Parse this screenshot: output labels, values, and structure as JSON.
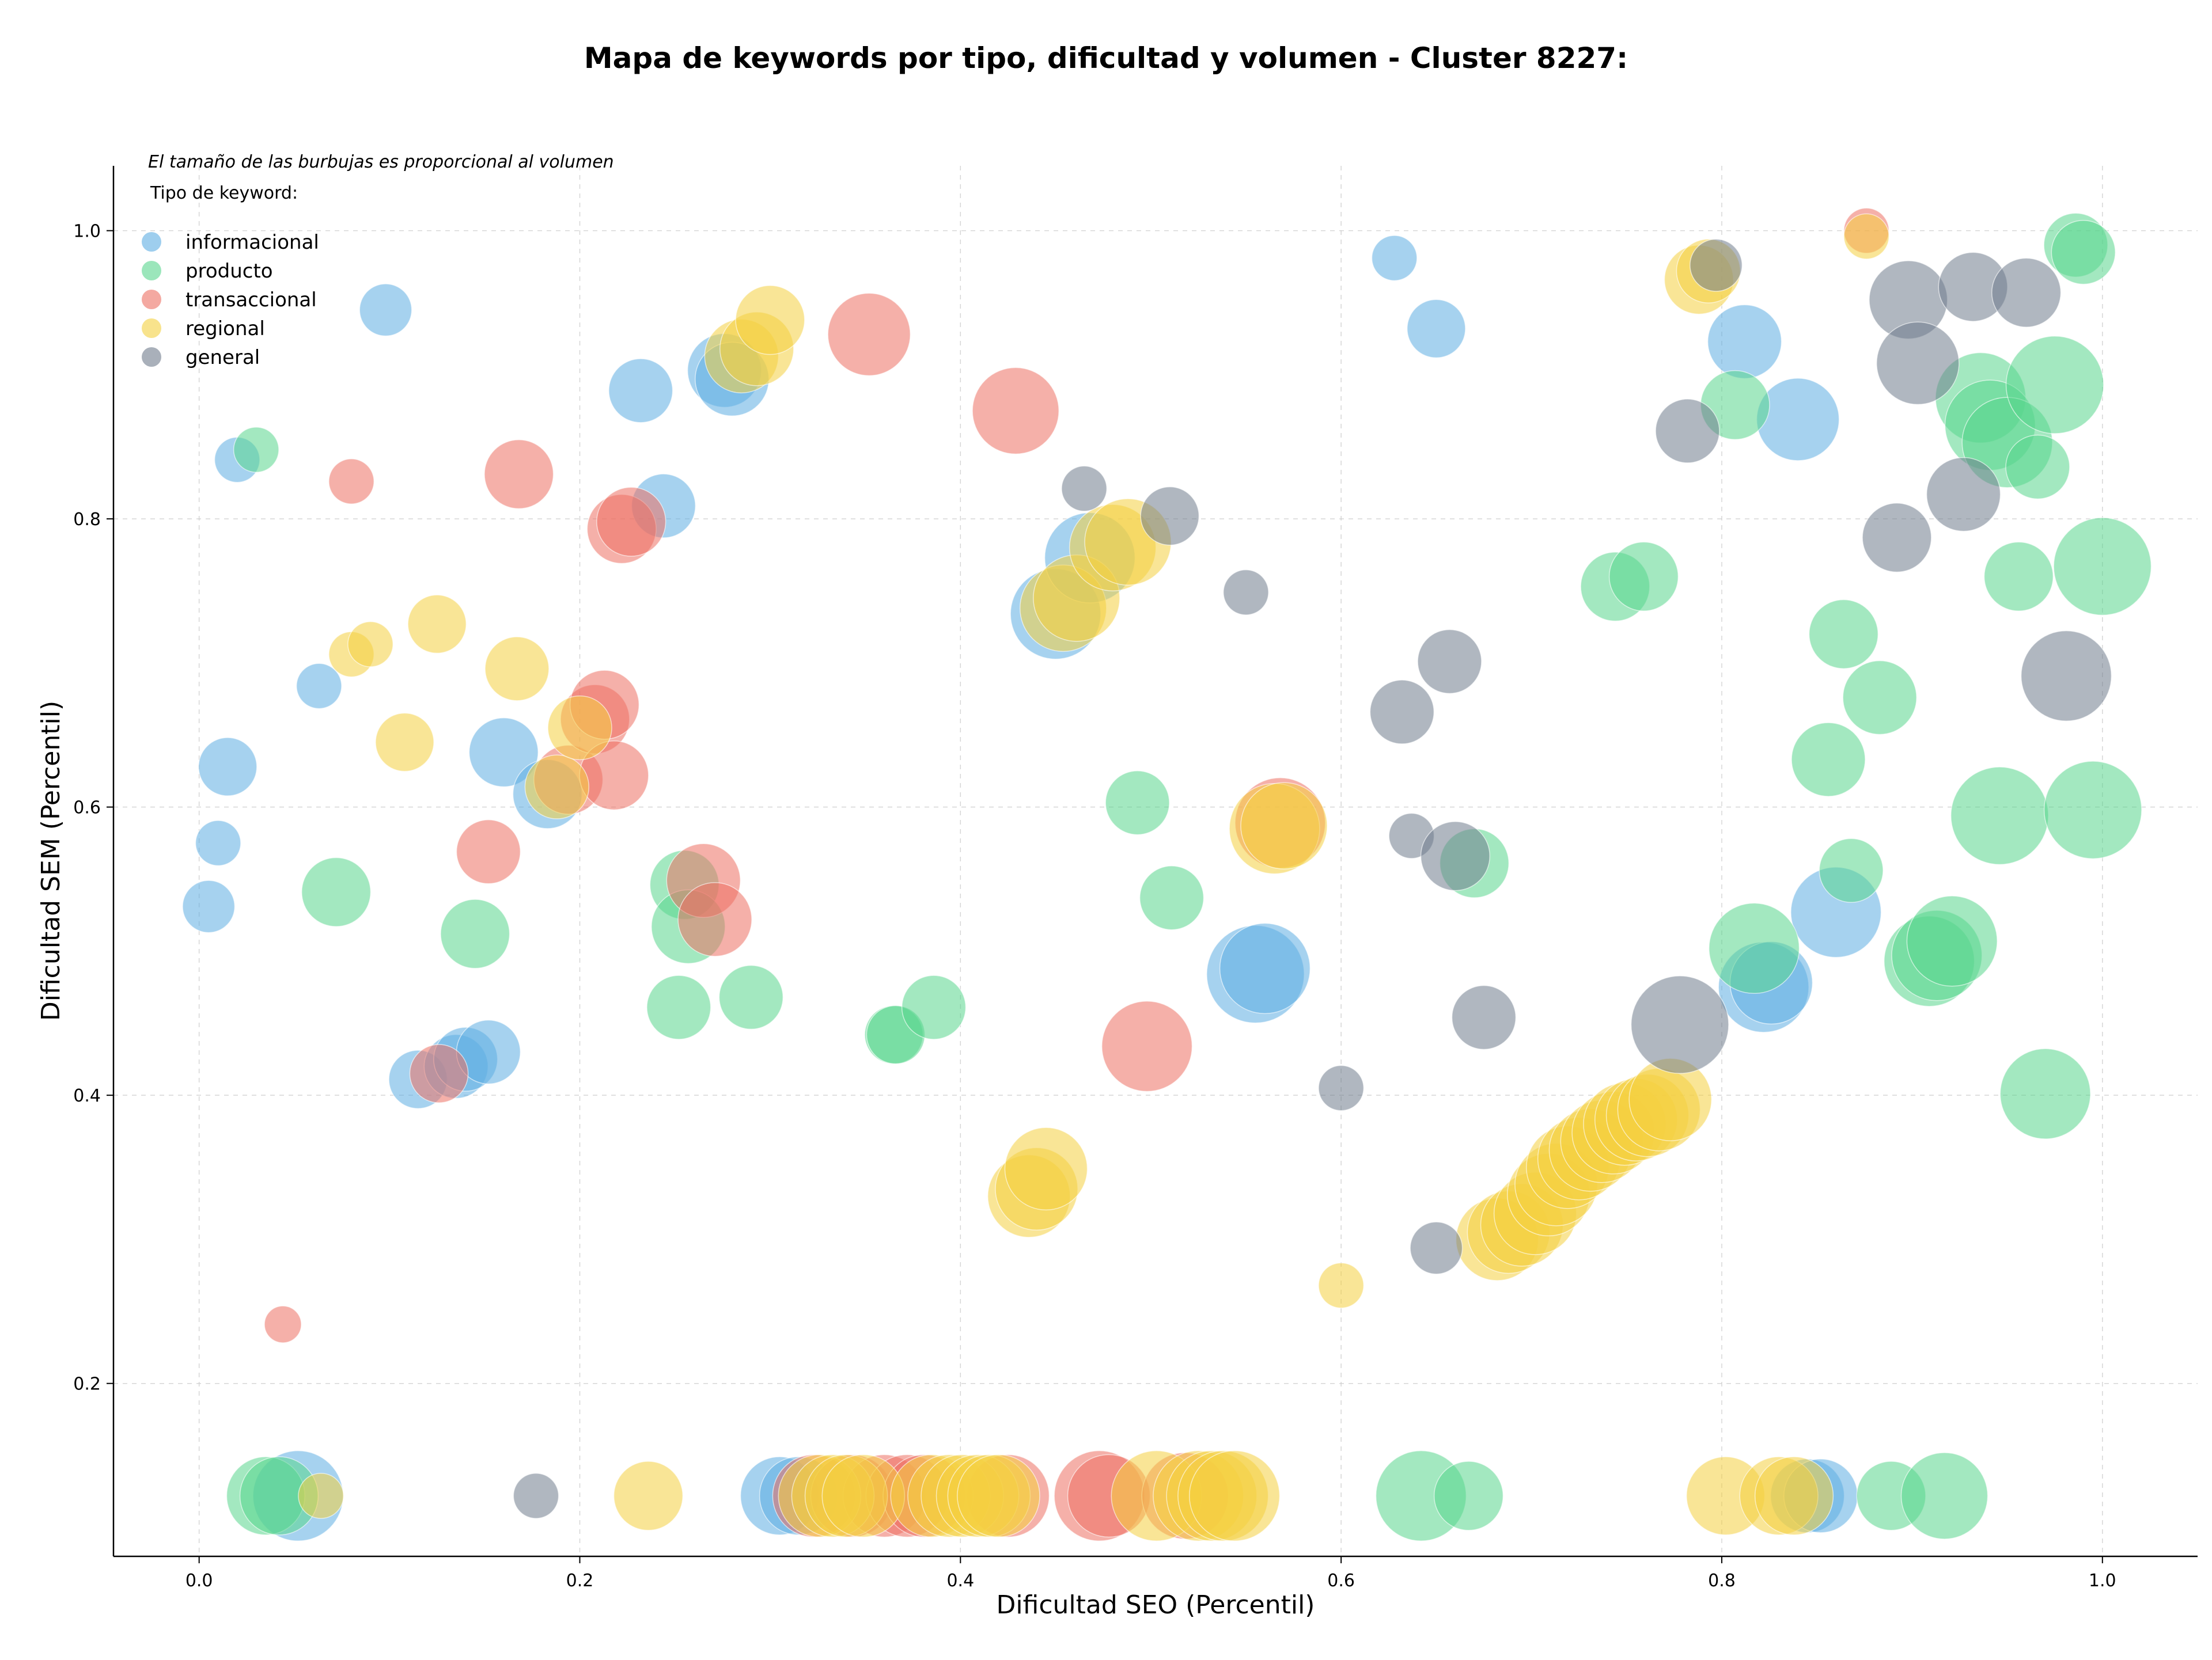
{
  "chart_data": {
    "type": "scatter",
    "title": "Mapa de keywords por tipo, dificultad y volumen - Cluster 8227:",
    "xlabel": "Dificultad SEO (Percentil)",
    "ylabel": "Dificultad SEM (Percentil)",
    "xlim": [
      -0.045,
      1.05
    ],
    "ylim": [
      0.08,
      1.045
    ],
    "xticks": [
      "0.0",
      "0.2",
      "0.4",
      "0.6",
      "0.8",
      "1.0"
    ],
    "yticks": [
      "0.2",
      "0.4",
      "0.6",
      "0.8",
      "1.0"
    ],
    "grid": true,
    "legend": {
      "placement": "top-left",
      "note": "El tamaño de las burbujas es proporcional al volumen",
      "title": "Tipo de keyword:"
    },
    "size_note": "s = relative bubble size (proportional to volume)",
    "series": [
      {
        "name": "informacional",
        "color": "#5DADE2",
        "points": [
          {
            "x": 0.005,
            "y": 0.531,
            "s": 2
          },
          {
            "x": 0.01,
            "y": 0.575,
            "s": 1.5
          },
          {
            "x": 0.015,
            "y": 0.628,
            "s": 2.5
          },
          {
            "x": 0.02,
            "y": 0.841,
            "s": 1.5
          },
          {
            "x": 0.052,
            "y": 0.122,
            "s": 6
          },
          {
            "x": 0.063,
            "y": 0.684,
            "s": 1.5
          },
          {
            "x": 0.098,
            "y": 0.945,
            "s": 2
          },
          {
            "x": 0.115,
            "y": 0.411,
            "s": 2.5
          },
          {
            "x": 0.135,
            "y": 0.42,
            "s": 3
          },
          {
            "x": 0.14,
            "y": 0.425,
            "s": 3
          },
          {
            "x": 0.152,
            "y": 0.43,
            "s": 3
          },
          {
            "x": 0.16,
            "y": 0.638,
            "s": 3.5
          },
          {
            "x": 0.183,
            "y": 0.609,
            "s": 3.5
          },
          {
            "x": 0.232,
            "y": 0.889,
            "s": 3
          },
          {
            "x": 0.244,
            "y": 0.809,
            "s": 3
          },
          {
            "x": 0.276,
            "y": 0.903,
            "s": 4
          },
          {
            "x": 0.28,
            "y": 0.897,
            "s": 4
          },
          {
            "x": 0.305,
            "y": 0.122,
            "s": 4.5
          },
          {
            "x": 0.315,
            "y": 0.122,
            "s": 4.5
          },
          {
            "x": 0.45,
            "y": 0.734,
            "s": 6
          },
          {
            "x": 0.468,
            "y": 0.773,
            "s": 6
          },
          {
            "x": 0.555,
            "y": 0.484,
            "s": 7
          },
          {
            "x": 0.56,
            "y": 0.488,
            "s": 6
          },
          {
            "x": 0.628,
            "y": 0.981,
            "s": 1.5
          },
          {
            "x": 0.65,
            "y": 0.932,
            "s": 2.5
          },
          {
            "x": 0.812,
            "y": 0.923,
            "s": 4
          },
          {
            "x": 0.822,
            "y": 0.475,
            "s": 6
          },
          {
            "x": 0.826,
            "y": 0.478,
            "s": 5
          },
          {
            "x": 0.84,
            "y": 0.869,
            "s": 5
          },
          {
            "x": 0.845,
            "y": 0.122,
            "s": 4
          },
          {
            "x": 0.852,
            "y": 0.122,
            "s": 4
          },
          {
            "x": 0.86,
            "y": 0.527,
            "s": 6
          }
        ]
      },
      {
        "name": "producto",
        "color": "#58D68D",
        "points": [
          {
            "x": 0.03,
            "y": 0.848,
            "s": 1.5
          },
          {
            "x": 0.035,
            "y": 0.122,
            "s": 4.5
          },
          {
            "x": 0.042,
            "y": 0.122,
            "s": 4.5
          },
          {
            "x": 0.072,
            "y": 0.541,
            "s": 3.5
          },
          {
            "x": 0.145,
            "y": 0.512,
            "s": 3.5
          },
          {
            "x": 0.252,
            "y": 0.461,
            "s": 3
          },
          {
            "x": 0.255,
            "y": 0.546,
            "s": 3.5
          },
          {
            "x": 0.257,
            "y": 0.517,
            "s": 4
          },
          {
            "x": 0.29,
            "y": 0.468,
            "s": 3
          },
          {
            "x": 0.365,
            "y": 0.442,
            "s": 2.5
          },
          {
            "x": 0.366,
            "y": 0.442,
            "s": 2.5
          },
          {
            "x": 0.386,
            "y": 0.461,
            "s": 3
          },
          {
            "x": 0.493,
            "y": 0.603,
            "s": 3
          },
          {
            "x": 0.511,
            "y": 0.537,
            "s": 3
          },
          {
            "x": 0.642,
            "y": 0.122,
            "s": 6
          },
          {
            "x": 0.667,
            "y": 0.122,
            "s": 3.5
          },
          {
            "x": 0.67,
            "y": 0.561,
            "s": 3.5
          },
          {
            "x": 0.744,
            "y": 0.753,
            "s": 3.5
          },
          {
            "x": 0.759,
            "y": 0.76,
            "s": 3.5
          },
          {
            "x": 0.807,
            "y": 0.879,
            "s": 3.5
          },
          {
            "x": 0.817,
            "y": 0.502,
            "s": 6
          },
          {
            "x": 0.856,
            "y": 0.633,
            "s": 4
          },
          {
            "x": 0.864,
            "y": 0.72,
            "s": 3.5
          },
          {
            "x": 0.868,
            "y": 0.556,
            "s": 3
          },
          {
            "x": 0.883,
            "y": 0.676,
            "s": 4
          },
          {
            "x": 0.889,
            "y": 0.122,
            "s": 3.5
          },
          {
            "x": 0.909,
            "y": 0.493,
            "s": 6
          },
          {
            "x": 0.913,
            "y": 0.497,
            "s": 6
          },
          {
            "x": 0.917,
            "y": 0.122,
            "s": 5.5
          },
          {
            "x": 0.921,
            "y": 0.507,
            "s": 6
          },
          {
            "x": 0.936,
            "y": 0.884,
            "s": 6
          },
          {
            "x": 0.941,
            "y": 0.865,
            "s": 6
          },
          {
            "x": 0.95,
            "y": 0.853,
            "s": 6
          },
          {
            "x": 0.946,
            "y": 0.594,
            "s": 7
          },
          {
            "x": 0.956,
            "y": 0.76,
            "s": 3.5
          },
          {
            "x": 0.966,
            "y": 0.836,
            "s": 3
          },
          {
            "x": 0.97,
            "y": 0.401,
            "s": 6
          },
          {
            "x": 0.975,
            "y": 0.893,
            "s": 7
          },
          {
            "x": 0.986,
            "y": 0.99,
            "s": 3
          },
          {
            "x": 0.99,
            "y": 0.985,
            "s": 3
          },
          {
            "x": 0.995,
            "y": 0.598,
            "s": 7
          },
          {
            "x": 1.0,
            "y": 0.767,
            "s": 7
          }
        ]
      },
      {
        "name": "transaccional",
        "color": "#EC7063",
        "points": [
          {
            "x": 0.044,
            "y": 0.241,
            "s": 1
          },
          {
            "x": 0.08,
            "y": 0.826,
            "s": 1.5
          },
          {
            "x": 0.126,
            "y": 0.415,
            "s": 2.5
          },
          {
            "x": 0.152,
            "y": 0.569,
            "s": 3
          },
          {
            "x": 0.168,
            "y": 0.831,
            "s": 3.5
          },
          {
            "x": 0.194,
            "y": 0.619,
            "s": 3.5
          },
          {
            "x": 0.208,
            "y": 0.661,
            "s": 3.5
          },
          {
            "x": 0.213,
            "y": 0.671,
            "s": 3.5
          },
          {
            "x": 0.218,
            "y": 0.622,
            "s": 3.5
          },
          {
            "x": 0.222,
            "y": 0.793,
            "s": 3.5
          },
          {
            "x": 0.227,
            "y": 0.798,
            "s": 3.5
          },
          {
            "x": 0.265,
            "y": 0.549,
            "s": 4
          },
          {
            "x": 0.271,
            "y": 0.522,
            "s": 4
          },
          {
            "x": 0.323,
            "y": 0.122,
            "s": 5
          },
          {
            "x": 0.343,
            "y": 0.122,
            "s": 5
          },
          {
            "x": 0.352,
            "y": 0.928,
            "s": 5
          },
          {
            "x": 0.36,
            "y": 0.122,
            "s": 5
          },
          {
            "x": 0.372,
            "y": 0.122,
            "s": 5
          },
          {
            "x": 0.381,
            "y": 0.122,
            "s": 5
          },
          {
            "x": 0.425,
            "y": 0.122,
            "s": 5
          },
          {
            "x": 0.429,
            "y": 0.875,
            "s": 5.5
          },
          {
            "x": 0.473,
            "y": 0.122,
            "s": 6
          },
          {
            "x": 0.478,
            "y": 0.122,
            "s": 5
          },
          {
            "x": 0.498,
            "y": 0.434,
            "s": 6
          },
          {
            "x": 0.518,
            "y": 0.122,
            "s": 5.5
          },
          {
            "x": 0.568,
            "y": 0.589,
            "s": 6
          },
          {
            "x": 0.876,
            "y": 1.0,
            "s": 1.5
          }
        ]
      },
      {
        "name": "regional",
        "color": "#F4D03F",
        "points": [
          {
            "x": 0.064,
            "y": 0.122,
            "s": 1.5
          },
          {
            "x": 0.08,
            "y": 0.706,
            "s": 1.5
          },
          {
            "x": 0.09,
            "y": 0.713,
            "s": 1.5
          },
          {
            "x": 0.108,
            "y": 0.645,
            "s": 2.5
          },
          {
            "x": 0.125,
            "y": 0.727,
            "s": 2.5
          },
          {
            "x": 0.167,
            "y": 0.696,
            "s": 3
          },
          {
            "x": 0.188,
            "y": 0.614,
            "s": 3
          },
          {
            "x": 0.2,
            "y": 0.655,
            "s": 3
          },
          {
            "x": 0.236,
            "y": 0.122,
            "s": 3.5
          },
          {
            "x": 0.285,
            "y": 0.913,
            "s": 4
          },
          {
            "x": 0.293,
            "y": 0.918,
            "s": 4
          },
          {
            "x": 0.3,
            "y": 0.938,
            "s": 3.5
          },
          {
            "x": 0.326,
            "y": 0.122,
            "s": 5
          },
          {
            "x": 0.333,
            "y": 0.122,
            "s": 5
          },
          {
            "x": 0.34,
            "y": 0.122,
            "s": 5
          },
          {
            "x": 0.349,
            "y": 0.122,
            "s": 5
          },
          {
            "x": 0.385,
            "y": 0.122,
            "s": 5
          },
          {
            "x": 0.394,
            "y": 0.122,
            "s": 5
          },
          {
            "x": 0.401,
            "y": 0.122,
            "s": 5
          },
          {
            "x": 0.409,
            "y": 0.122,
            "s": 5
          },
          {
            "x": 0.415,
            "y": 0.122,
            "s": 5
          },
          {
            "x": 0.42,
            "y": 0.122,
            "s": 5
          },
          {
            "x": 0.436,
            "y": 0.33,
            "s": 5
          },
          {
            "x": 0.44,
            "y": 0.335,
            "s": 5
          },
          {
            "x": 0.445,
            "y": 0.349,
            "s": 5
          },
          {
            "x": 0.454,
            "y": 0.738,
            "s": 5.5
          },
          {
            "x": 0.461,
            "y": 0.745,
            "s": 5.5
          },
          {
            "x": 0.48,
            "y": 0.78,
            "s": 5.5
          },
          {
            "x": 0.488,
            "y": 0.784,
            "s": 5.5
          },
          {
            "x": 0.503,
            "y": 0.122,
            "s": 6
          },
          {
            "x": 0.525,
            "y": 0.122,
            "s": 6
          },
          {
            "x": 0.532,
            "y": 0.122,
            "s": 6
          },
          {
            "x": 0.538,
            "y": 0.122,
            "s": 6
          },
          {
            "x": 0.544,
            "y": 0.122,
            "s": 6
          },
          {
            "x": 0.565,
            "y": 0.585,
            "s": 6
          },
          {
            "x": 0.57,
            "y": 0.587,
            "s": 5.5
          },
          {
            "x": 0.6,
            "y": 0.268,
            "s": 1.5
          },
          {
            "x": 0.682,
            "y": 0.3,
            "s": 5
          },
          {
            "x": 0.688,
            "y": 0.305,
            "s": 5
          },
          {
            "x": 0.695,
            "y": 0.31,
            "s": 5
          },
          {
            "x": 0.702,
            "y": 0.318,
            "s": 5
          },
          {
            "x": 0.709,
            "y": 0.331,
            "s": 5
          },
          {
            "x": 0.713,
            "y": 0.338,
            "s": 5
          },
          {
            "x": 0.719,
            "y": 0.35,
            "s": 5
          },
          {
            "x": 0.725,
            "y": 0.356,
            "s": 5
          },
          {
            "x": 0.731,
            "y": 0.362,
            "s": 5
          },
          {
            "x": 0.737,
            "y": 0.368,
            "s": 5
          },
          {
            "x": 0.743,
            "y": 0.374,
            "s": 5
          },
          {
            "x": 0.749,
            "y": 0.38,
            "s": 5
          },
          {
            "x": 0.755,
            "y": 0.383,
            "s": 5
          },
          {
            "x": 0.761,
            "y": 0.386,
            "s": 5
          },
          {
            "x": 0.767,
            "y": 0.39,
            "s": 5
          },
          {
            "x": 0.773,
            "y": 0.397,
            "s": 5
          },
          {
            "x": 0.788,
            "y": 0.966,
            "s": 3.5
          },
          {
            "x": 0.793,
            "y": 0.972,
            "s": 3
          },
          {
            "x": 0.802,
            "y": 0.122,
            "s": 4.5
          },
          {
            "x": 0.83,
            "y": 0.122,
            "s": 4.5
          },
          {
            "x": 0.838,
            "y": 0.122,
            "s": 4.5
          },
          {
            "x": 0.876,
            "y": 0.996,
            "s": 1.5
          }
        ]
      },
      {
        "name": "general",
        "color": "#707B8C",
        "points": [
          {
            "x": 0.177,
            "y": 0.122,
            "s": 1.5
          },
          {
            "x": 0.465,
            "y": 0.821,
            "s": 1.5
          },
          {
            "x": 0.51,
            "y": 0.802,
            "s": 2.5
          },
          {
            "x": 0.55,
            "y": 0.749,
            "s": 1.5
          },
          {
            "x": 0.6,
            "y": 0.405,
            "s": 1.5
          },
          {
            "x": 0.632,
            "y": 0.666,
            "s": 3
          },
          {
            "x": 0.637,
            "y": 0.58,
            "s": 1.5
          },
          {
            "x": 0.65,
            "y": 0.294,
            "s": 2
          },
          {
            "x": 0.657,
            "y": 0.701,
            "s": 3
          },
          {
            "x": 0.66,
            "y": 0.566,
            "s": 3.5
          },
          {
            "x": 0.675,
            "y": 0.454,
            "s": 3
          },
          {
            "x": 0.778,
            "y": 0.449,
            "s": 7
          },
          {
            "x": 0.782,
            "y": 0.861,
            "s": 3
          },
          {
            "x": 0.797,
            "y": 0.976,
            "s": 2
          },
          {
            "x": 0.892,
            "y": 0.787,
            "s": 3.5
          },
          {
            "x": 0.898,
            "y": 0.952,
            "s": 4.5
          },
          {
            "x": 0.903,
            "y": 0.908,
            "s": 5
          },
          {
            "x": 0.927,
            "y": 0.817,
            "s": 4
          },
          {
            "x": 0.932,
            "y": 0.961,
            "s": 3.5
          },
          {
            "x": 0.96,
            "y": 0.957,
            "s": 3.5
          },
          {
            "x": 0.981,
            "y": 0.691,
            "s": 6
          }
        ]
      }
    ]
  }
}
